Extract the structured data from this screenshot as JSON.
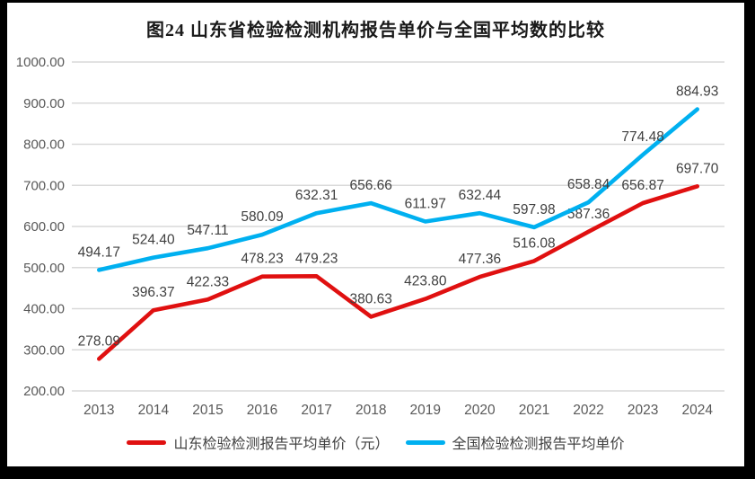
{
  "title": "图24  山东省检验检测机构报告单价与全国平均数的比较",
  "colors": {
    "frame": "#000000",
    "panel": "#ffffff",
    "gridline": "#d9d9d9",
    "axis_label": "#595959",
    "data_label": "#3f3f3f",
    "title": "#1a1a1a",
    "shandong_red": "#e01010",
    "national_blue": "#00b0f0"
  },
  "chart_data": {
    "type": "line",
    "categories": [
      "2013",
      "2014",
      "2015",
      "2016",
      "2017",
      "2018",
      "2019",
      "2020",
      "2021",
      "2022",
      "2023",
      "2024"
    ],
    "series": [
      {
        "name": "山东检验检测报告平均单价（元）",
        "color": "#e01010",
        "values": [
          278.09,
          396.37,
          422.33,
          478.23,
          479.23,
          380.63,
          423.8,
          477.36,
          516.08,
          587.36,
          656.87,
          697.7
        ]
      },
      {
        "name": "全国检验检测报告平均单价",
        "color": "#00b0f0",
        "values": [
          494.17,
          524.4,
          547.11,
          580.09,
          632.31,
          656.66,
          611.97,
          632.44,
          597.98,
          658.84,
          774.48,
          884.93
        ]
      }
    ],
    "ylim": [
      200,
      1000
    ],
    "y_ticks": [
      "200.00",
      "300.00",
      "400.00",
      "500.00",
      "600.00",
      "700.00",
      "800.00",
      "900.00",
      "1000.00"
    ],
    "grid": true,
    "data_labels": true,
    "label_decimals": 2,
    "legend_position": "bottom"
  }
}
